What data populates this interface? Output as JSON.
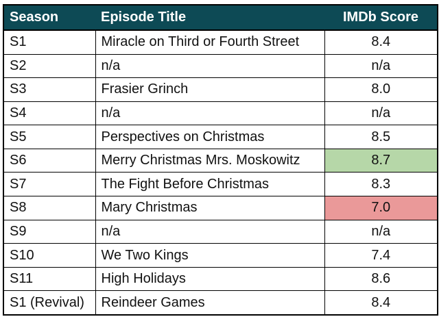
{
  "columns": {
    "season": "Season",
    "title": "Episode Title",
    "score": "IMDb Score"
  },
  "rows": [
    {
      "season": "S1",
      "title": "Miracle on Third or Fourth Street",
      "score": "8.4",
      "highlight": ""
    },
    {
      "season": "S2",
      "title": "n/a",
      "score": "n/a",
      "highlight": ""
    },
    {
      "season": "S3",
      "title": "Frasier Grinch",
      "score": "8.0",
      "highlight": ""
    },
    {
      "season": "S4",
      "title": "n/a",
      "score": "n/a",
      "highlight": ""
    },
    {
      "season": "S5",
      "title": "Perspectives on Christmas",
      "score": "8.5",
      "highlight": ""
    },
    {
      "season": "S6",
      "title": "Merry Christmas Mrs. Moskowitz",
      "score": "8.7",
      "highlight": "good"
    },
    {
      "season": "S7",
      "title": "The Fight Before Christmas",
      "score": "8.3",
      "highlight": ""
    },
    {
      "season": "S8",
      "title": "Mary Christmas",
      "score": "7.0",
      "highlight": "bad"
    },
    {
      "season": "S9",
      "title": "n/a",
      "score": "n/a",
      "highlight": ""
    },
    {
      "season": "S10",
      "title": "We Two Kings",
      "score": "7.4",
      "highlight": ""
    },
    {
      "season": "S11",
      "title": "High Holidays",
      "score": "8.6",
      "highlight": ""
    },
    {
      "season": "S1 (Revival)",
      "title": "Reindeer Games",
      "score": "8.4",
      "highlight": ""
    }
  ],
  "colors": {
    "header_bg": "#0d4a55",
    "highest_score_bg": "#b6d7a8",
    "lowest_score_bg": "#ea9999"
  }
}
